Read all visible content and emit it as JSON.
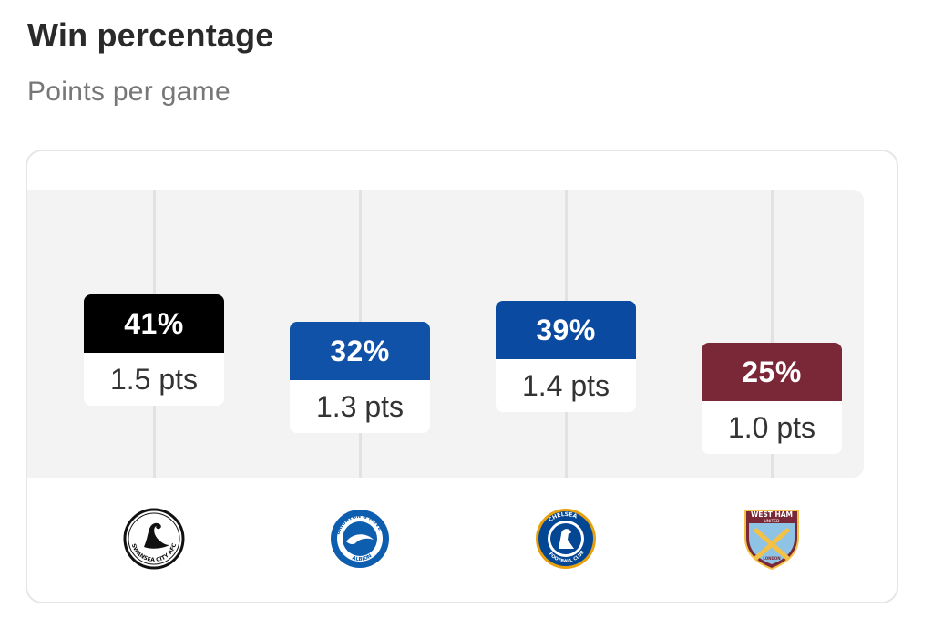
{
  "title": "Win percentage",
  "subtitle": "Points per game",
  "chart_data": {
    "type": "bar",
    "title": "Win percentage",
    "subtitle": "Points per game",
    "categories": [
      "Swansea City",
      "Brighton & Hove Albion",
      "Chelsea",
      "West Ham United"
    ],
    "series": [
      {
        "name": "Win percentage",
        "values": [
          41,
          32,
          39,
          25
        ]
      },
      {
        "name": "Points per game",
        "values": [
          1.5,
          1.3,
          1.4,
          1.0
        ]
      }
    ],
    "labels": {
      "win": [
        "41%",
        "32%",
        "39%",
        "25%"
      ],
      "pts": [
        "1.5 pts",
        "1.3 pts",
        "1.4 pts",
        "1.0 pts"
      ]
    },
    "ylim": [
      0,
      100
    ],
    "colors": [
      "#000000",
      "#0f52a8",
      "#0a4aa0",
      "#7a2838"
    ],
    "grid": true,
    "legend": "none",
    "logos": [
      {
        "icon": "swansea-crest-icon",
        "text": "SWANSEA CITY AFC"
      },
      {
        "icon": "brighton-crest-icon",
        "top_text": "BRIGHTON & HOVE",
        "bottom_text": "ALBION"
      },
      {
        "icon": "chelsea-crest-icon",
        "top_text": "CHELSEA",
        "bottom_text": "FOOTBALL CLUB"
      },
      {
        "icon": "westham-crest-icon",
        "top_text": "WEST HAM",
        "mid_text": "UNITED",
        "bottom_text": "LONDON"
      }
    ]
  }
}
